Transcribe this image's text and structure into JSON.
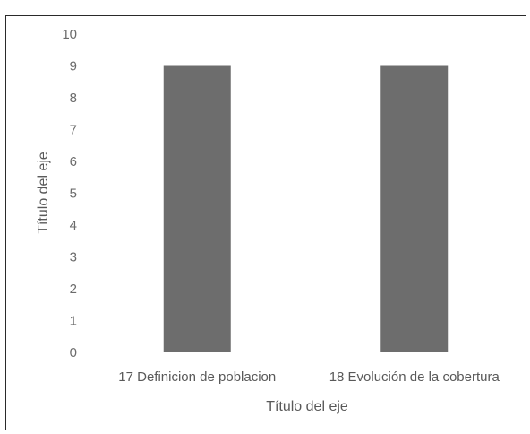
{
  "chart_data": {
    "type": "bar",
    "categories": [
      "17 Definicion de poblacion",
      "18 Evolución de la cobertura"
    ],
    "values": [
      9,
      9
    ],
    "ylim": [
      0,
      10
    ],
    "yticks": [
      "0",
      "1",
      "2",
      "3",
      "4",
      "5",
      "6",
      "7",
      "8",
      "9",
      "10"
    ],
    "xlabel": "Título del eje",
    "ylabel": "Título del eje",
    "bar_color": "#6d6d6d",
    "grid": false,
    "legend": "none"
  }
}
